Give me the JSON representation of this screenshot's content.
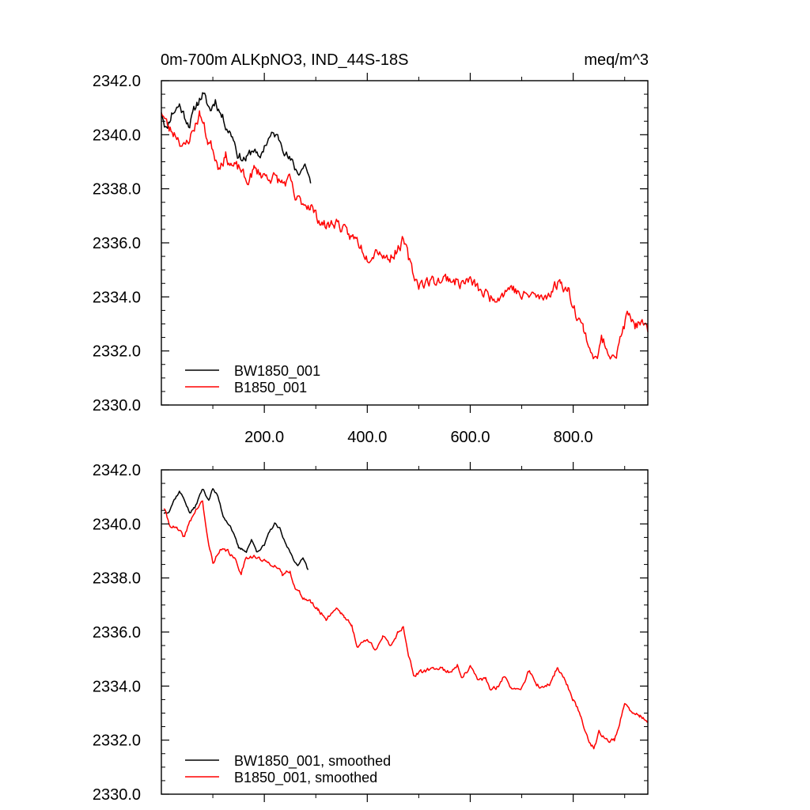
{
  "header": {
    "left_title": "0m-700m ALKpNO3, IND_44S-18S",
    "right_title": "meq/m^3"
  },
  "colors": {
    "series_bw": "#000000",
    "series_b": "#ff0000",
    "axes": "#000000"
  },
  "chart_data": [
    {
      "type": "line",
      "panel": "raw",
      "xlim": [
        0,
        945
      ],
      "ylim": [
        2330,
        2342
      ],
      "x_ticks": [
        200,
        400,
        600,
        800
      ],
      "x_tick_labels": [
        "200.0",
        "400.0",
        "600.0",
        "800.0"
      ],
      "y_ticks": [
        2330,
        2332,
        2334,
        2336,
        2338,
        2340,
        2342
      ],
      "y_tick_labels": [
        "2330.0",
        "2332.0",
        "2334.0",
        "2336.0",
        "2338.0",
        "2340.0",
        "2342.0"
      ],
      "legend": [
        "BW1850_001",
        "B1850_001"
      ],
      "series": [
        {
          "name": "BW1850_001",
          "color": "#000000",
          "noise": 0.35,
          "seed": 11,
          "knots": [
            [
              0,
              2340.9
            ],
            [
              10,
              2340.2
            ],
            [
              20,
              2340.8
            ],
            [
              35,
              2341.1
            ],
            [
              45,
              2340.7
            ],
            [
              55,
              2340.4
            ],
            [
              70,
              2341.2
            ],
            [
              80,
              2341.5
            ],
            [
              95,
              2340.9
            ],
            [
              105,
              2341.3
            ],
            [
              115,
              2340.8
            ],
            [
              130,
              2340.2
            ],
            [
              140,
              2339.9
            ],
            [
              150,
              2339.2
            ],
            [
              165,
              2339.1
            ],
            [
              180,
              2339.5
            ],
            [
              190,
              2339.0
            ],
            [
              200,
              2339.6
            ],
            [
              210,
              2339.9
            ],
            [
              220,
              2340.0
            ],
            [
              235,
              2339.7
            ],
            [
              245,
              2339.2
            ],
            [
              255,
              2338.9
            ],
            [
              265,
              2338.6
            ],
            [
              280,
              2338.9
            ],
            [
              290,
              2338.2
            ]
          ]
        },
        {
          "name": "B1850_001",
          "color": "#ff0000",
          "noise": 0.4,
          "seed": 23,
          "knots": [
            [
              0,
              2340.9
            ],
            [
              15,
              2340.2
            ],
            [
              30,
              2340.0
            ],
            [
              45,
              2339.5
            ],
            [
              60,
              2340.1
            ],
            [
              75,
              2340.8
            ],
            [
              90,
              2339.8
            ],
            [
              100,
              2339.5
            ],
            [
              110,
              2338.9
            ],
            [
              125,
              2339.2
            ],
            [
              140,
              2338.8
            ],
            [
              155,
              2338.7
            ],
            [
              165,
              2338.2
            ],
            [
              180,
              2338.7
            ],
            [
              200,
              2338.5
            ],
            [
              220,
              2338.4
            ],
            [
              235,
              2338.2
            ],
            [
              250,
              2338.3
            ],
            [
              260,
              2337.6
            ],
            [
              275,
              2337.5
            ],
            [
              290,
              2337.4
            ],
            [
              300,
              2337.0
            ],
            [
              320,
              2336.6
            ],
            [
              340,
              2336.8
            ],
            [
              360,
              2336.3
            ],
            [
              380,
              2336.1
            ],
            [
              400,
              2335.5
            ],
            [
              420,
              2335.8
            ],
            [
              440,
              2335.4
            ],
            [
              460,
              2335.8
            ],
            [
              470,
              2336.1
            ],
            [
              480,
              2335.4
            ],
            [
              490,
              2334.8
            ],
            [
              500,
              2334.5
            ],
            [
              530,
              2334.6
            ],
            [
              560,
              2334.7
            ],
            [
              580,
              2334.5
            ],
            [
              600,
              2334.6
            ],
            [
              620,
              2334.2
            ],
            [
              640,
              2334.0
            ],
            [
              660,
              2334.1
            ],
            [
              680,
              2334.4
            ],
            [
              700,
              2334.0
            ],
            [
              720,
              2334.1
            ],
            [
              740,
              2333.9
            ],
            [
              760,
              2334.3
            ],
            [
              775,
              2334.6
            ],
            [
              790,
              2334.2
            ],
            [
              805,
              2333.5
            ],
            [
              820,
              2332.8
            ],
            [
              835,
              2332.0
            ],
            [
              845,
              2331.6
            ],
            [
              855,
              2332.4
            ],
            [
              870,
              2332.0
            ],
            [
              885,
              2331.9
            ],
            [
              895,
              2332.7
            ],
            [
              905,
              2333.3
            ],
            [
              920,
              2333.0
            ],
            [
              935,
              2332.9
            ],
            [
              945,
              2332.7
            ]
          ]
        }
      ]
    },
    {
      "type": "line",
      "panel": "smoothed",
      "xlim": [
        0,
        945
      ],
      "ylim": [
        2330,
        2342
      ],
      "x_ticks": [
        200,
        400,
        600,
        800
      ],
      "x_tick_labels": [],
      "y_ticks": [
        2330,
        2332,
        2334,
        2336,
        2338,
        2340,
        2342
      ],
      "y_tick_labels": [
        "2330.0",
        "2332.0",
        "2334.0",
        "2336.0",
        "2338.0",
        "2340.0",
        "2342.0"
      ],
      "legend": [
        "BW1850_001, smoothed",
        "B1850_001, smoothed"
      ],
      "series": [
        {
          "name": "BW1850_001, smoothed",
          "color": "#000000",
          "noise": 0.1,
          "seed": 37,
          "knots": [
            [
              5,
              2340.4
            ],
            [
              15,
              2340.5
            ],
            [
              25,
              2340.9
            ],
            [
              35,
              2341.2
            ],
            [
              45,
              2340.9
            ],
            [
              55,
              2340.4
            ],
            [
              65,
              2340.6
            ],
            [
              80,
              2341.3
            ],
            [
              92,
              2340.9
            ],
            [
              100,
              2341.3
            ],
            [
              110,
              2341.0
            ],
            [
              120,
              2340.3
            ],
            [
              135,
              2339.9
            ],
            [
              150,
              2339.1
            ],
            [
              165,
              2339.0
            ],
            [
              175,
              2339.4
            ],
            [
              185,
              2339.0
            ],
            [
              200,
              2339.2
            ],
            [
              210,
              2339.7
            ],
            [
              220,
              2340.0
            ],
            [
              230,
              2339.8
            ],
            [
              240,
              2339.3
            ],
            [
              255,
              2338.8
            ],
            [
              265,
              2338.4
            ],
            [
              275,
              2338.8
            ],
            [
              285,
              2338.3
            ]
          ]
        },
        {
          "name": "B1850_001, smoothed",
          "color": "#ff0000",
          "noise": 0.15,
          "seed": 41,
          "knots": [
            [
              5,
              2340.6
            ],
            [
              15,
              2340.0
            ],
            [
              30,
              2339.8
            ],
            [
              45,
              2339.5
            ],
            [
              55,
              2340.1
            ],
            [
              70,
              2340.6
            ],
            [
              80,
              2340.8
            ],
            [
              90,
              2339.4
            ],
            [
              100,
              2338.6
            ],
            [
              115,
              2339.0
            ],
            [
              130,
              2339.0
            ],
            [
              145,
              2338.6
            ],
            [
              155,
              2338.2
            ],
            [
              165,
              2338.8
            ],
            [
              180,
              2338.8
            ],
            [
              200,
              2338.6
            ],
            [
              220,
              2338.5
            ],
            [
              235,
              2338.1
            ],
            [
              250,
              2338.3
            ],
            [
              260,
              2337.6
            ],
            [
              275,
              2337.3
            ],
            [
              290,
              2337.1
            ],
            [
              305,
              2336.8
            ],
            [
              320,
              2336.5
            ],
            [
              340,
              2336.9
            ],
            [
              355,
              2336.6
            ],
            [
              370,
              2336.2
            ],
            [
              380,
              2335.5
            ],
            [
              400,
              2335.7
            ],
            [
              415,
              2335.4
            ],
            [
              430,
              2335.8
            ],
            [
              445,
              2335.5
            ],
            [
              460,
              2336.0
            ],
            [
              470,
              2336.2
            ],
            [
              480,
              2335.2
            ],
            [
              490,
              2334.4
            ],
            [
              505,
              2334.5
            ],
            [
              520,
              2334.6
            ],
            [
              540,
              2334.7
            ],
            [
              560,
              2334.5
            ],
            [
              575,
              2334.8
            ],
            [
              585,
              2334.3
            ],
            [
              600,
              2334.7
            ],
            [
              615,
              2334.2
            ],
            [
              630,
              2334.3
            ],
            [
              640,
              2333.8
            ],
            [
              655,
              2334.0
            ],
            [
              665,
              2334.4
            ],
            [
              680,
              2333.9
            ],
            [
              700,
              2334.0
            ],
            [
              715,
              2334.6
            ],
            [
              725,
              2334.1
            ],
            [
              740,
              2333.9
            ],
            [
              755,
              2334.1
            ],
            [
              770,
              2334.7
            ],
            [
              785,
              2334.2
            ],
            [
              800,
              2333.5
            ],
            [
              815,
              2332.9
            ],
            [
              825,
              2332.2
            ],
            [
              840,
              2331.7
            ],
            [
              850,
              2332.3
            ],
            [
              865,
              2332.0
            ],
            [
              880,
              2332.0
            ],
            [
              890,
              2332.6
            ],
            [
              900,
              2333.3
            ],
            [
              915,
              2333.0
            ],
            [
              930,
              2332.9
            ],
            [
              945,
              2332.7
            ]
          ]
        }
      ]
    }
  ]
}
